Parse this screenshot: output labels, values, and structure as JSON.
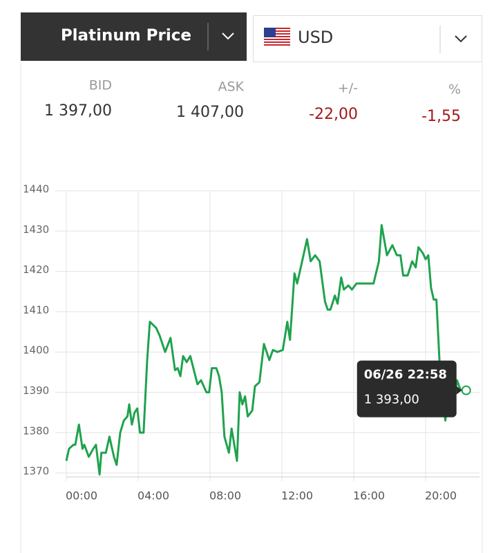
{
  "header": {
    "title": "Platinum Price",
    "currency": "USD"
  },
  "quote": {
    "labels": [
      "BID",
      "ASK",
      "+/-",
      "%"
    ],
    "values": [
      "1 397,00",
      "1 407,00",
      "-22,00",
      "-1,55"
    ]
  },
  "chart_data": {
    "type": "line",
    "x": [
      0,
      0.15,
      0.4,
      0.5,
      0.7,
      0.9,
      1.0,
      1.25,
      1.5,
      1.65,
      1.85,
      1.95,
      2.2,
      2.4,
      2.65,
      2.8,
      3.0,
      3.2,
      3.4,
      3.5,
      3.65,
      3.8,
      3.95,
      4.1,
      4.3,
      4.5,
      4.65,
      5.0,
      5.2,
      5.5,
      5.8,
      6.05,
      6.2,
      6.35,
      6.5,
      6.7,
      6.9,
      7.3,
      7.5,
      7.8,
      7.95,
      8.1,
      8.35,
      8.5,
      8.65,
      8.8,
      9.05,
      9.2,
      9.35,
      9.5,
      9.65,
      9.8,
      9.95,
      10.1,
      10.35,
      10.5,
      10.75,
      11.0,
      11.3,
      11.5,
      11.75,
      12.05,
      12.3,
      12.45,
      12.7,
      12.85,
      13.1,
      13.4,
      13.6,
      13.85,
      14.1,
      14.4,
      14.55,
      14.7,
      14.95,
      15.1,
      15.3,
      15.45,
      15.7,
      15.9,
      16.15,
      17.1,
      17.4,
      17.55,
      17.85,
      18.15,
      18.4,
      18.6,
      18.75,
      19.0,
      19.25,
      19.45,
      19.6,
      19.85,
      20.0,
      20.15,
      20.3,
      20.45,
      20.6,
      20.85,
      21.1,
      21.3,
      21.55,
      21.75,
      21.95
    ],
    "series": [
      {
        "color": "#1fa24e",
        "values": [
          1373,
          1376,
          1377,
          1377,
          1382,
          1376,
          1377,
          1374,
          1376,
          1377,
          1369.6,
          1375,
          1375,
          1379,
          1374,
          1372,
          1380,
          1383,
          1384,
          1387,
          1382,
          1385,
          1386,
          1380,
          1380,
          1398,
          1407.5,
          1406,
          1404,
          1400,
          1403.5,
          1395.5,
          1396,
          1394,
          1399,
          1397.5,
          1399,
          1392,
          1393,
          1390,
          1390,
          1396,
          1396,
          1394,
          1390,
          1379,
          1375,
          1381,
          1377,
          1373,
          1390,
          1387,
          1389,
          1384,
          1385.5,
          1391.5,
          1392.5,
          1402,
          1398,
          1400.5,
          1400,
          1400.5,
          1407.5,
          1403,
          1419.5,
          1417,
          1422,
          1428,
          1422.5,
          1424,
          1422.5,
          1412.5,
          1410.5,
          1410.5,
          1414,
          1412,
          1418.5,
          1415.5,
          1416.5,
          1415.5,
          1417,
          1417,
          1422.5,
          1431.5,
          1424,
          1426.5,
          1424,
          1424,
          1419,
          1419,
          1422.5,
          1421,
          1426,
          1424.5,
          1423,
          1424,
          1416,
          1413,
          1413,
          1391,
          1383,
          1390.5,
          1387,
          1393,
          1390.5
        ]
      }
    ],
    "xlim": [
      0,
      23
    ],
    "xticks": [
      {
        "value": 0,
        "label": "00:00"
      },
      {
        "value": 4,
        "label": "04:00"
      },
      {
        "value": 8,
        "label": "08:00"
      },
      {
        "value": 12,
        "label": "12:00"
      },
      {
        "value": 16,
        "label": "16:00"
      },
      {
        "value": 20,
        "label": "20:00"
      }
    ],
    "ylim": [
      1369,
      1440
    ],
    "yticks": [
      1370,
      1380,
      1390,
      1400,
      1410,
      1420,
      1430,
      1440
    ],
    "grid": true,
    "tooltip": {
      "time": "06/26 22:58",
      "price": "1 393,00"
    }
  }
}
